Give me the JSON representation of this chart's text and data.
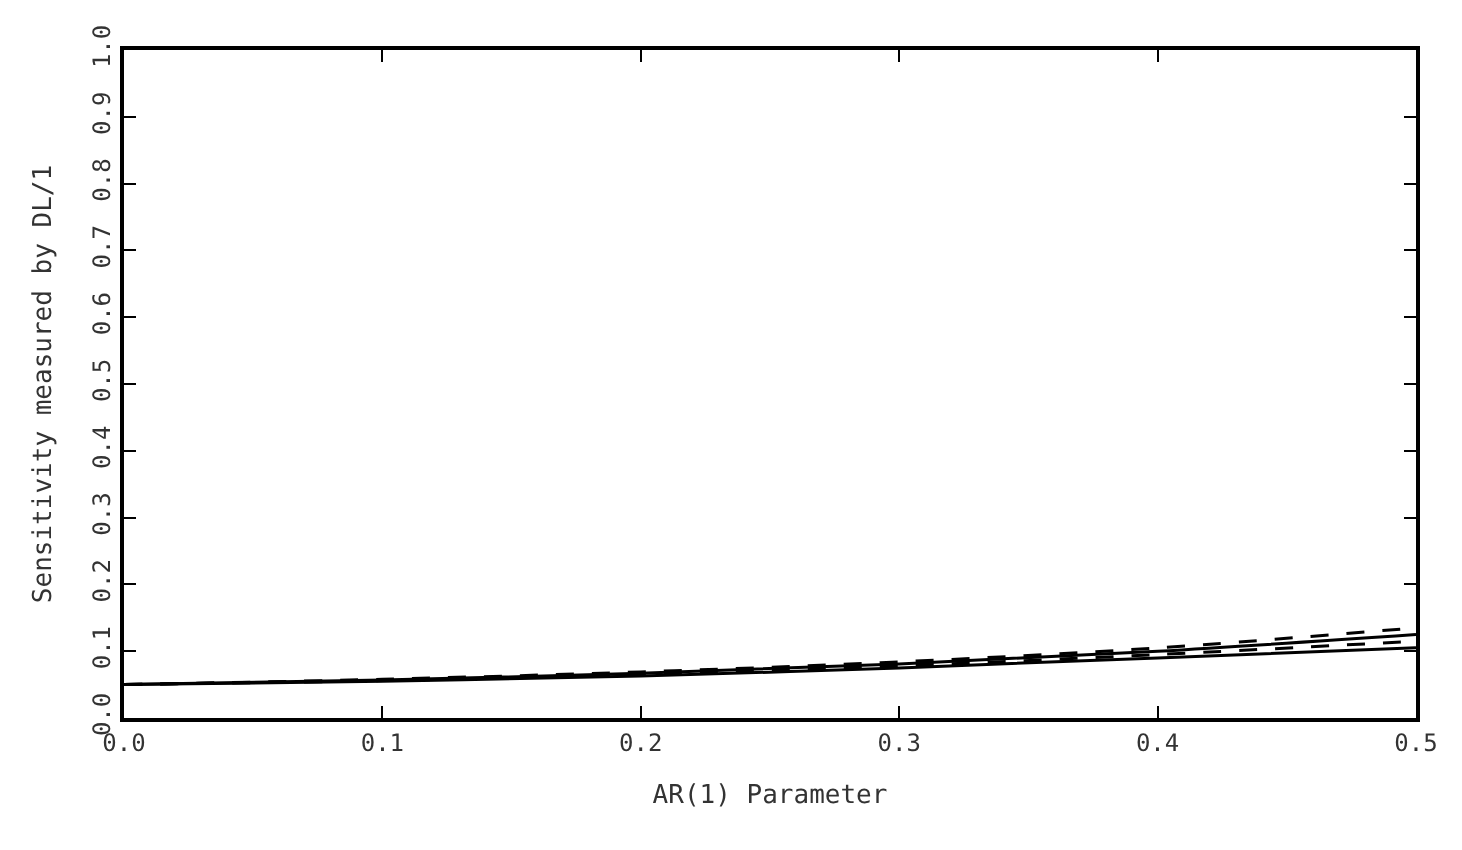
{
  "chart_data": {
    "type": "line",
    "xlabel": "AR(1) Parameter",
    "ylabel": "Sensitivity measured by DL/1",
    "xlim": [
      0,
      0.5
    ],
    "xticks": [
      {
        "value": 0,
        "label": "0.0"
      },
      0.1,
      0.2,
      0.3,
      0.4,
      0.5
    ],
    "ylim": [
      0,
      1
    ],
    "yticks": [
      {
        "value": 0,
        "label": "0.0"
      },
      0.1,
      0.2,
      0.3,
      0.4,
      0.5,
      0.6,
      0.7,
      0.8,
      0.9,
      {
        "value": 1,
        "label": "1.0"
      }
    ],
    "marker": "none",
    "x": [
      0,
      0.1,
      0.2,
      0.3,
      0.4,
      0.5
    ],
    "series": [
      {
        "color": "#000000",
        "line_style": "solid",
        "values": [
          0.05,
          0.055,
          0.063,
          0.075,
          0.09,
          0.105
        ]
      },
      {
        "color": "#000000",
        "line_style": "dashed",
        "values": [
          0.05,
          0.056,
          0.065,
          0.078,
          0.095,
          0.115
        ]
      },
      {
        "color": "#000000",
        "line_style": "solid",
        "values": [
          0.05,
          0.057,
          0.067,
          0.081,
          0.1,
          0.125
        ]
      },
      {
        "color": "#000000",
        "line_style": "dashed",
        "values": [
          0.05,
          0.058,
          0.069,
          0.084,
          0.105,
          0.135
        ]
      }
    ]
  }
}
